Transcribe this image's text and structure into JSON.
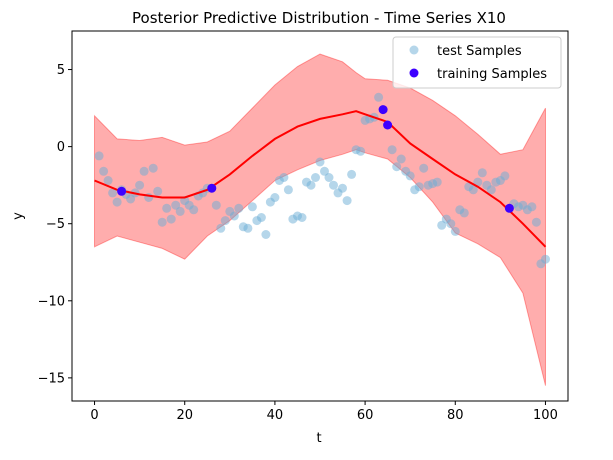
{
  "chart_data": {
    "type": "scatter",
    "title": "Posterior Predictive Distribution - Time Series X10",
    "xlabel": "t",
    "ylabel": "y",
    "xlim": [
      -5,
      105
    ],
    "ylim": [
      -16.5,
      7.5
    ],
    "xticks": [
      0,
      20,
      40,
      60,
      80,
      100
    ],
    "yticks": [
      5,
      0,
      -5,
      -10,
      -15
    ],
    "legend": {
      "position": "top-right",
      "entries": [
        {
          "label": "test Samples",
          "color": "#6baed6"
        },
        {
          "label": "training Samples",
          "color": "#3d00ff"
        }
      ]
    },
    "mean_line": {
      "color": "#ff0000",
      "x": [
        0,
        5,
        10,
        15,
        20,
        25,
        30,
        35,
        40,
        45,
        50,
        55,
        58,
        60,
        65,
        70,
        75,
        80,
        85,
        90,
        95,
        100
      ],
      "y": [
        -2.2,
        -2.8,
        -3.1,
        -3.3,
        -3.3,
        -2.8,
        -1.8,
        -0.6,
        0.5,
        1.3,
        1.8,
        2.1,
        2.3,
        2.1,
        1.6,
        0.2,
        -0.8,
        -1.8,
        -2.6,
        -3.6,
        -5.0,
        -6.5
      ]
    },
    "band": {
      "color": "#ff0000",
      "upper": [
        2.0,
        0.5,
        0.4,
        0.6,
        0.1,
        0.3,
        1.0,
        2.5,
        4.0,
        5.2,
        6.0,
        5.5,
        4.8,
        4.4,
        4.3,
        3.8,
        3.0,
        2.0,
        0.8,
        -0.5,
        -0.2,
        2.5
      ],
      "lower": [
        -6.5,
        -5.8,
        -6.2,
        -6.6,
        -7.3,
        -5.8,
        -4.8,
        -3.5,
        -2.2,
        -1.5,
        -0.9,
        -0.5,
        -0.2,
        -0.4,
        -0.8,
        -2.0,
        -3.6,
        -5.6,
        -6.3,
        -7.2,
        -9.5,
        -15.5
      ]
    },
    "test_samples": {
      "color": "#6baed6",
      "x": [
        1,
        2,
        3,
        4,
        5,
        6,
        7,
        8,
        9,
        10,
        11,
        12,
        13,
        14,
        15,
        16,
        17,
        18,
        19,
        20,
        21,
        22,
        23,
        24,
        25,
        27,
        28,
        29,
        30,
        31,
        32,
        33,
        34,
        35,
        36,
        37,
        38,
        39,
        40,
        41,
        42,
        43,
        44,
        45,
        46,
        47,
        48,
        49,
        50,
        51,
        52,
        53,
        54,
        55,
        56,
        57,
        58,
        59,
        60,
        61,
        62,
        63,
        66,
        67,
        68,
        69,
        70,
        71,
        72,
        73,
        74,
        75,
        76,
        77,
        78,
        79,
        80,
        81,
        82,
        83,
        84,
        85,
        86,
        87,
        88,
        89,
        90,
        91,
        93,
        94,
        95,
        96,
        97,
        98,
        99,
        100
      ],
      "y": [
        -0.6,
        -1.6,
        -2.2,
        -3.0,
        -3.6,
        -2.8,
        -3.1,
        -3.4,
        -3.0,
        -2.5,
        -1.6,
        -3.3,
        -1.4,
        -2.9,
        -4.9,
        -4.0,
        -4.7,
        -3.8,
        -4.2,
        -3.5,
        -3.8,
        -4.1,
        -3.2,
        -3.0,
        -2.7,
        -3.8,
        -5.3,
        -4.8,
        -4.2,
        -4.5,
        -4.0,
        -5.2,
        -5.3,
        -3.9,
        -4.8,
        -4.6,
        -5.7,
        -3.6,
        -3.3,
        -2.2,
        -2.0,
        -2.8,
        -4.7,
        -4.5,
        -4.6,
        -2.3,
        -2.5,
        -2.0,
        -1.0,
        -1.6,
        -2.0,
        -2.5,
        -3.0,
        -2.7,
        -3.5,
        -1.8,
        -0.2,
        -0.3,
        1.7,
        1.8,
        1.9,
        3.2,
        -0.2,
        -1.3,
        -0.8,
        -1.6,
        -1.9,
        -2.8,
        -2.6,
        -1.4,
        -2.5,
        -2.4,
        -2.3,
        -5.1,
        -4.7,
        -5.0,
        -5.5,
        -4.1,
        -4.3,
        -2.6,
        -2.8,
        -2.3,
        -1.7,
        -2.5,
        -2.8,
        -2.3,
        -2.2,
        -1.9,
        -3.7,
        -3.9,
        -3.8,
        -4.1,
        -3.9,
        -4.9,
        -7.6,
        -7.3
      ]
    },
    "training_samples": {
      "color": "#3d00ff",
      "x": [
        6,
        26,
        64,
        65,
        92
      ],
      "y": [
        -2.9,
        -2.7,
        2.4,
        1.4,
        -4.0
      ]
    }
  }
}
